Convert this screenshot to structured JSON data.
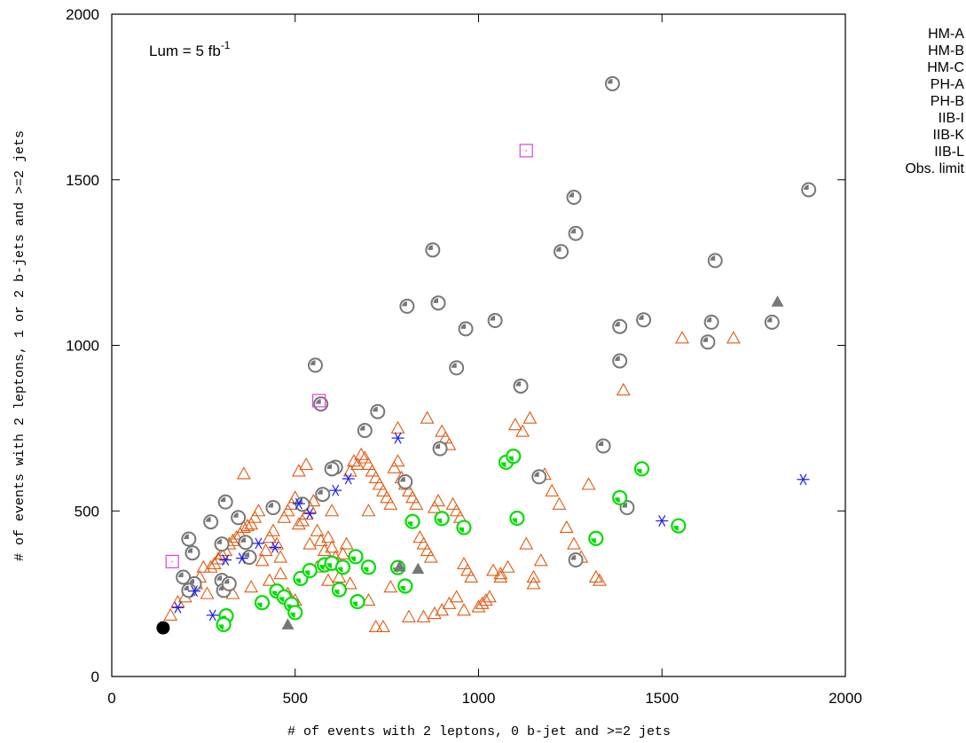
{
  "chart_data": {
    "type": "scatter",
    "xlabel": "# of events with 2 leptons, 0 b-jet and >=2 jets",
    "ylabel": "# of events with 2 leptons, 1 or 2 b-jets and >=2 jets",
    "xlim": [
      0,
      2000
    ],
    "ylim": [
      0,
      2000
    ],
    "x_ticks": [
      0,
      500,
      1000,
      1500,
      2000
    ],
    "y_ticks": [
      0,
      500,
      1000,
      1500,
      2000
    ],
    "grid": false,
    "legend_position": "right, outside plot",
    "annotation": {
      "text": "Lum = 5 fb",
      "superscript": "-1"
    },
    "colors": {
      "HM-A": "#000000",
      "HM-B": "#00dd00",
      "HM-C": "#777777",
      "PH-A": "#e05a10",
      "PH-B": "#1a1aee",
      "IIB-I": "#e040e0",
      "IIB-K": "#777777",
      "IIB-L": "#777777"
    },
    "series": [
      {
        "name": "HM-A",
        "marker": "filled-circle",
        "points": [
          [
            140,
            147
          ]
        ]
      },
      {
        "name": "HM-B",
        "marker": "circle-quarter",
        "points": [
          [
            312,
            183
          ],
          [
            305,
            157
          ],
          [
            410,
            223
          ],
          [
            450,
            258
          ],
          [
            470,
            240
          ],
          [
            490,
            218
          ],
          [
            500,
            193
          ],
          [
            515,
            296
          ],
          [
            540,
            320
          ],
          [
            580,
            337
          ],
          [
            600,
            342
          ],
          [
            620,
            262
          ],
          [
            630,
            330
          ],
          [
            665,
            362
          ],
          [
            670,
            226
          ],
          [
            700,
            330
          ],
          [
            780,
            329
          ],
          [
            800,
            273
          ],
          [
            820,
            468
          ],
          [
            900,
            477
          ],
          [
            960,
            450
          ],
          [
            1075,
            647
          ],
          [
            1095,
            665
          ],
          [
            1105,
            478
          ],
          [
            1320,
            417
          ],
          [
            1385,
            540
          ],
          [
            1445,
            627
          ],
          [
            1545,
            455
          ]
        ]
      },
      {
        "name": "HM-C",
        "marker": "circle-dot",
        "points": [
          [
            1365,
            1790
          ],
          [
            1260,
            1447
          ],
          [
            1265,
            1338
          ],
          [
            1225,
            1283
          ],
          [
            875,
            1288
          ],
          [
            1645,
            1256
          ],
          [
            1900,
            1470
          ],
          [
            805,
            1118
          ],
          [
            890,
            1128
          ],
          [
            965,
            1050
          ],
          [
            1045,
            1075
          ],
          [
            1385,
            1057
          ],
          [
            1450,
            1077
          ],
          [
            1635,
            1070
          ],
          [
            1800,
            1070
          ],
          [
            1625,
            1010
          ],
          [
            940,
            932
          ],
          [
            1385,
            953
          ],
          [
            1115,
            877
          ],
          [
            555,
            940
          ],
          [
            570,
            823
          ],
          [
            725,
            800
          ],
          [
            690,
            743
          ],
          [
            1340,
            696
          ],
          [
            895,
            688
          ],
          [
            575,
            550
          ],
          [
            610,
            632
          ],
          [
            600,
            627
          ],
          [
            800,
            588
          ],
          [
            1165,
            603
          ],
          [
            1405,
            510
          ],
          [
            1265,
            352
          ],
          [
            520,
            520
          ],
          [
            440,
            510
          ],
          [
            310,
            527
          ],
          [
            345,
            480
          ],
          [
            270,
            467
          ],
          [
            365,
            405
          ],
          [
            375,
            360
          ],
          [
            210,
            415
          ],
          [
            220,
            373
          ],
          [
            300,
            400
          ],
          [
            300,
            290
          ],
          [
            305,
            260
          ],
          [
            320,
            280
          ],
          [
            195,
            300
          ],
          [
            225,
            280
          ],
          [
            210,
            260
          ]
        ]
      },
      {
        "name": "PH-A",
        "marker": "open-triangle",
        "points": [
          [
            160,
            185
          ],
          [
            180,
            225
          ],
          [
            200,
            240
          ],
          [
            210,
            260
          ],
          [
            230,
            280
          ],
          [
            240,
            300
          ],
          [
            260,
            250
          ],
          [
            270,
            330
          ],
          [
            280,
            340
          ],
          [
            290,
            355
          ],
          [
            300,
            370
          ],
          [
            310,
            380
          ],
          [
            320,
            400
          ],
          [
            330,
            410
          ],
          [
            340,
            420
          ],
          [
            350,
            430
          ],
          [
            360,
            450
          ],
          [
            370,
            455
          ],
          [
            380,
            460
          ],
          [
            390,
            480
          ],
          [
            400,
            500
          ],
          [
            410,
            350
          ],
          [
            420,
            380
          ],
          [
            430,
            420
          ],
          [
            440,
            440
          ],
          [
            450,
            400
          ],
          [
            460,
            360
          ],
          [
            470,
            480
          ],
          [
            480,
            500
          ],
          [
            490,
            520
          ],
          [
            500,
            540
          ],
          [
            510,
            460
          ],
          [
            520,
            470
          ],
          [
            530,
            490
          ],
          [
            540,
            510
          ],
          [
            550,
            530
          ],
          [
            560,
            440
          ],
          [
            570,
            410
          ],
          [
            580,
            380
          ],
          [
            590,
            420
          ],
          [
            600,
            390
          ],
          [
            610,
            360
          ],
          [
            620,
            340
          ],
          [
            630,
            370
          ],
          [
            640,
            400
          ],
          [
            650,
            620
          ],
          [
            660,
            650
          ],
          [
            670,
            640
          ],
          [
            680,
            670
          ],
          [
            690,
            660
          ],
          [
            700,
            640
          ],
          [
            710,
            620
          ],
          [
            720,
            600
          ],
          [
            730,
            580
          ],
          [
            740,
            560
          ],
          [
            750,
            540
          ],
          [
            760,
            520
          ],
          [
            770,
            630
          ],
          [
            780,
            650
          ],
          [
            790,
            600
          ],
          [
            800,
            580
          ],
          [
            810,
            560
          ],
          [
            820,
            540
          ],
          [
            830,
            520
          ],
          [
            840,
            420
          ],
          [
            850,
            400
          ],
          [
            860,
            380
          ],
          [
            870,
            360
          ],
          [
            880,
            510
          ],
          [
            890,
            530
          ],
          [
            900,
            740
          ],
          [
            910,
            720
          ],
          [
            920,
            700
          ],
          [
            930,
            520
          ],
          [
            940,
            500
          ],
          [
            950,
            480
          ],
          [
            960,
            340
          ],
          [
            970,
            320
          ],
          [
            980,
            300
          ],
          [
            1000,
            210
          ],
          [
            1020,
            230
          ],
          [
            1040,
            320
          ],
          [
            1060,
            300
          ],
          [
            1080,
            330
          ],
          [
            1100,
            760
          ],
          [
            1120,
            740
          ],
          [
            1140,
            780
          ],
          [
            1150,
            300
          ],
          [
            1170,
            350
          ],
          [
            1180,
            610
          ],
          [
            1200,
            560
          ],
          [
            1220,
            520
          ],
          [
            1240,
            450
          ],
          [
            1260,
            400
          ],
          [
            1280,
            360
          ],
          [
            1300,
            580
          ],
          [
            1320,
            300
          ],
          [
            1330,
            290
          ],
          [
            1395,
            865
          ],
          [
            1555,
            1022
          ],
          [
            1695,
            1022
          ],
          [
            250,
            330
          ],
          [
            330,
            250
          ],
          [
            380,
            270
          ],
          [
            430,
            290
          ],
          [
            460,
            310
          ],
          [
            480,
            250
          ],
          [
            500,
            230
          ],
          [
            540,
            400
          ],
          [
            560,
            330
          ],
          [
            590,
            290
          ],
          [
            620,
            300
          ],
          [
            650,
            280
          ],
          [
            700,
            230
          ],
          [
            720,
            150
          ],
          [
            740,
            150
          ],
          [
            760,
            270
          ],
          [
            810,
            180
          ],
          [
            850,
            180
          ],
          [
            880,
            190
          ],
          [
            900,
            200
          ],
          [
            920,
            220
          ],
          [
            940,
            240
          ],
          [
            960,
            200
          ],
          [
            1010,
            220
          ],
          [
            1030,
            240
          ],
          [
            1060,
            310
          ],
          [
            1130,
            400
          ],
          [
            1150,
            280
          ],
          [
            360,
            612
          ],
          [
            510,
            620
          ],
          [
            530,
            640
          ],
          [
            600,
            500
          ],
          [
            700,
            500
          ],
          [
            780,
            750
          ],
          [
            860,
            780
          ]
        ]
      },
      {
        "name": "PH-B",
        "marker": "asterisk",
        "points": [
          [
            180,
            208
          ],
          [
            225,
            258
          ],
          [
            275,
            185
          ],
          [
            310,
            352
          ],
          [
            355,
            357
          ],
          [
            400,
            402
          ],
          [
            445,
            390
          ],
          [
            510,
            522
          ],
          [
            540,
            492
          ],
          [
            610,
            562
          ],
          [
            645,
            597
          ],
          [
            780,
            720
          ],
          [
            1500,
            470
          ],
          [
            1885,
            595
          ]
        ]
      },
      {
        "name": "IIB-I",
        "marker": "open-square",
        "points": [
          [
            165,
            347
          ],
          [
            565,
            833
          ],
          [
            1130,
            1588
          ]
        ]
      },
      {
        "name": "IIB-K",
        "marker": "filled-triangle",
        "points": [
          [
            480,
            157
          ],
          [
            785,
            332
          ],
          [
            835,
            325
          ],
          [
            1815,
            1132
          ]
        ]
      },
      {
        "name": "IIB-L",
        "marker": "none",
        "points": []
      },
      {
        "name": "Obs. limit",
        "marker": "none",
        "points": []
      }
    ]
  }
}
